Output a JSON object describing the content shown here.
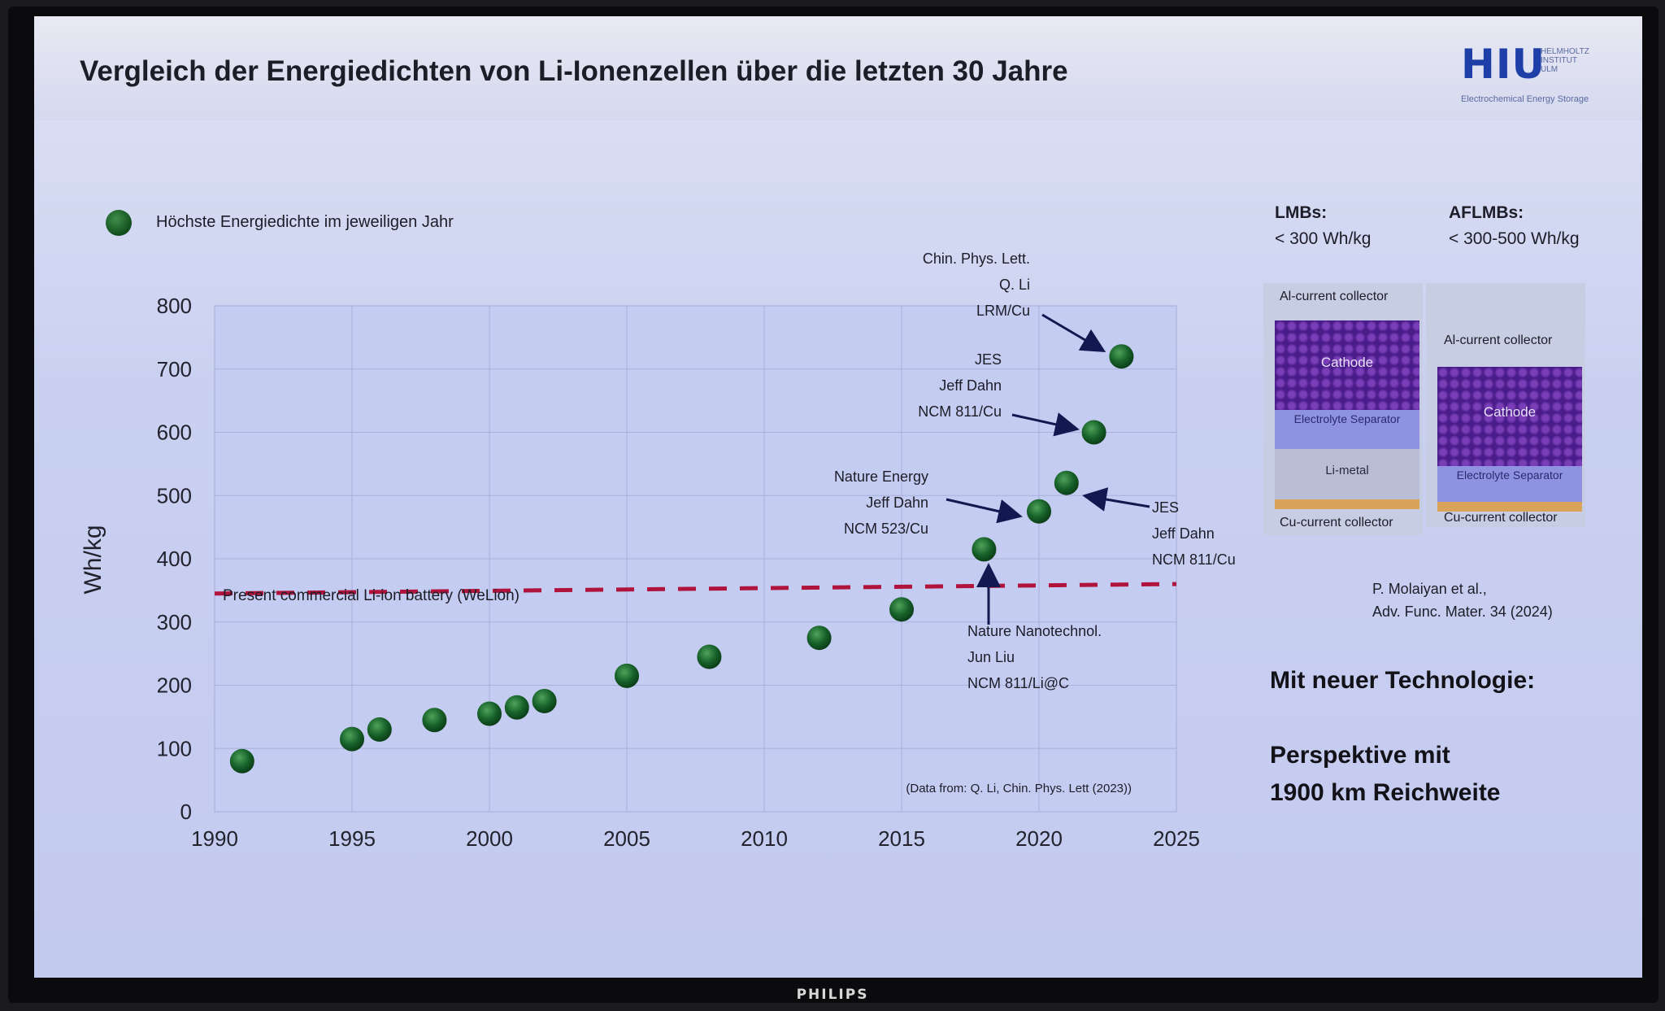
{
  "slide": {
    "title": "Vergleich der Energiedichten von Li-Ionenzellen über die letzten 30 Jahre",
    "logo_text": "HIU",
    "logo_sub": "HELMHOLTZ INSTITUT ULM",
    "logo_tagline": "Electrochemical Energy Storage",
    "brand": "PHILIPS"
  },
  "legend": {
    "label": "Höchste Energiedichte im jeweiligen Jahr"
  },
  "reference_line": {
    "label": "Present commercial Li-ion battery (WeLion)",
    "color": "#b0143c"
  },
  "source_note": "(Data from: Q. Li, Chin. Phys. Lett (2023))",
  "annotations": [
    {
      "lines": [
        "Chin. Phys. Lett.",
        "Q. Li",
        "LRM/Cu"
      ]
    },
    {
      "lines": [
        "JES",
        "Jeff Dahn",
        "NCM 811/Cu"
      ]
    },
    {
      "lines": [
        "Nature Energy",
        "Jeff Dahn",
        "NCM 523/Cu"
      ]
    },
    {
      "lines": [
        "JES",
        "Jeff Dahn",
        "NCM 811/Cu"
      ]
    },
    {
      "lines": [
        "Nature Nanotechnol.",
        "Jun Liu",
        "NCM 811/Li@C"
      ]
    }
  ],
  "right_panel": {
    "lmb_title": "LMBs:",
    "lmb_value": "< 300 Wh/kg",
    "aflmb_title": "AFLMBs:",
    "aflmb_value": "< 300-500 Wh/kg",
    "cell_left": {
      "al": "Al-current collector",
      "cathode": "Cathode",
      "separator": "Electrolyte Separator",
      "li": "Li-metal",
      "cu": "Cu-current collector"
    },
    "cell_right": {
      "al": "Al-current collector",
      "cathode": "Cathode",
      "separator": "Electrolyte Separator",
      "cu": "Cu-current collector"
    },
    "citation_line1": "P. Molaiyan et al.,",
    "citation_line2": "Adv. Func. Mater. 34 (2024)",
    "headline1": "Mit neuer Technologie:",
    "headline2": "Perspektive mit",
    "headline3": "1900 km Reichweite"
  },
  "chart_data": {
    "type": "scatter",
    "title": "",
    "xlabel": "",
    "ylabel": "Wh/kg",
    "xlim": [
      1990,
      2025
    ],
    "ylim": [
      0,
      800
    ],
    "x_ticks": [
      1990,
      1995,
      2000,
      2005,
      2010,
      2015,
      2020,
      2025
    ],
    "y_ticks": [
      0,
      100,
      200,
      300,
      400,
      500,
      600,
      700,
      800
    ],
    "grid": true,
    "series": [
      {
        "name": "Höchste Energiedichte im jeweiligen Jahr",
        "color": "#1f6b2c",
        "x": [
          1991,
          1995,
          1996,
          1998,
          2000,
          2001,
          2002,
          2005,
          2008,
          2012,
          2015,
          2018,
          2020,
          2021,
          2022,
          2023
        ],
        "y": [
          80,
          115,
          130,
          145,
          155,
          165,
          175,
          215,
          245,
          275,
          320,
          415,
          475,
          520,
          600,
          720
        ]
      }
    ],
    "reference_line": {
      "label": "Present commercial Li-ion battery (WeLion)",
      "y": [
        345,
        360
      ]
    }
  }
}
